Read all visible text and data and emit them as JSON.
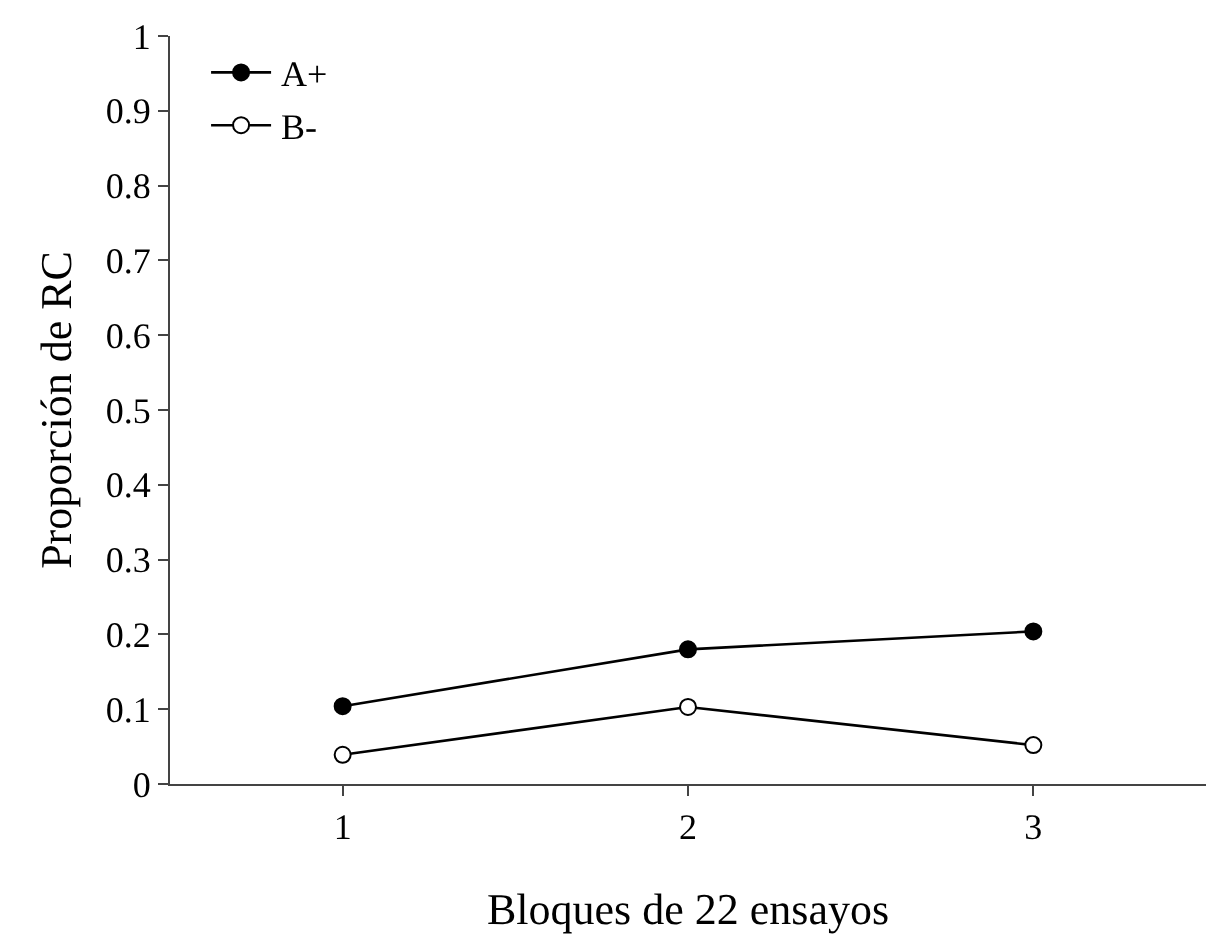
{
  "chart_data": {
    "type": "line",
    "xlabel": "Bloques de 22 ensayos",
    "ylabel": "Proporción de RC",
    "x": [
      1,
      2,
      3
    ],
    "xlim": [
      0.5,
      3.5
    ],
    "xticks": [
      1,
      2,
      3
    ],
    "ylim": [
      0,
      1
    ],
    "yticks": [
      0,
      0.1,
      0.2,
      0.3,
      0.4,
      0.5,
      0.6,
      0.7,
      0.8,
      0.9,
      1
    ],
    "series": [
      {
        "name": "A+",
        "color": "#000000",
        "values": [
          0.104,
          0.18,
          0.204
        ],
        "colors": [
          "#000000",
          "#000000",
          "#000000"
        ]
      },
      {
        "name": "B-",
        "color": "#000000",
        "values": [
          0.039,
          0.103,
          0.052
        ],
        "colors": [
          "#ffffff",
          "#ffffff",
          "#ffffff"
        ]
      }
    ],
    "marker": "circle",
    "line_style": "solid",
    "legend": "top left"
  }
}
